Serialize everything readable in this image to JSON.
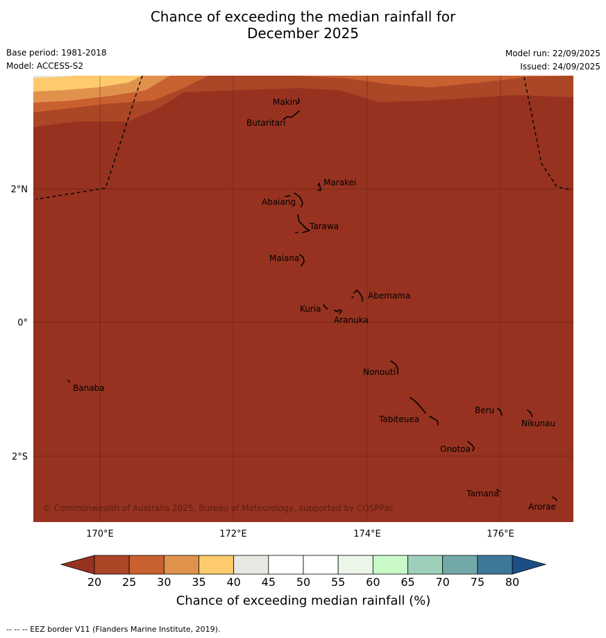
{
  "title": {
    "line1": "Chance of exceeding the median rainfall for",
    "line2": "December 2025"
  },
  "meta": {
    "base_period": "Base period: 1981-2018",
    "model": "Model: ACCESS-S2",
    "model_run": "Model run: 22/09/2025",
    "issued": "Issued: 24/09/2025"
  },
  "axes": {
    "lon_labels": [
      "170°E",
      "172°E",
      "174°E",
      "176°E"
    ],
    "lat_labels": [
      "2°N",
      "0°",
      "2°S"
    ]
  },
  "places": [
    {
      "name": "Makin"
    },
    {
      "name": "Butaritari"
    },
    {
      "name": "Marakei"
    },
    {
      "name": "Abaiang"
    },
    {
      "name": "Tarawa"
    },
    {
      "name": "Maiana"
    },
    {
      "name": "Abemama"
    },
    {
      "name": "Kuria"
    },
    {
      "name": "Aranuka"
    },
    {
      "name": "Nonouti"
    },
    {
      "name": "Banaba"
    },
    {
      "name": "Beru"
    },
    {
      "name": "Nikunau"
    },
    {
      "name": "Tabiteuea"
    },
    {
      "name": "Onotoa"
    },
    {
      "name": "Tamana"
    },
    {
      "name": "Arorae"
    }
  ],
  "copyright": "© Commonwealth of Australia 2025, Bureau of Meteorology, supported by COSPPac",
  "colorbar": {
    "ticks": [
      "20",
      "25",
      "30",
      "35",
      "40",
      "45",
      "50",
      "55",
      "60",
      "65",
      "70",
      "75",
      "80"
    ],
    "colors": [
      "#ab4626",
      "#c9602f",
      "#e0924d",
      "#fdca6c",
      "#e8e8e3",
      "#ffffff",
      "#ffffff",
      "#ebf5e8",
      "#c9fac8",
      "#9dcfba",
      "#72a9a8",
      "#3f7799"
    ],
    "low_color": "#973220",
    "high_color": "#1b4e85",
    "label": "Chance of exceeding median rainfall (%)"
  },
  "footer": "-- -- -- EEZ border V11 (Flanders Marine Institute, 2019)."
}
